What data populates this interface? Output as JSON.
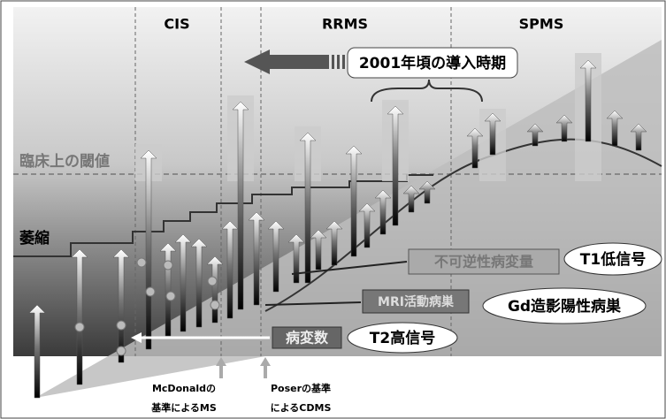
{
  "phases": [
    "CIS",
    "RRMS",
    "SPMS"
  ],
  "introduction": "2001年頃の導入時期",
  "threshold": "臨床上の閾値",
  "atrophy": "萎縮",
  "irreversible": {
    "label": "不可逆性病変量",
    "marker": "T1低信号"
  },
  "active": {
    "label": "MRI活動病巣",
    "marker": "Gd造影陽性病巣"
  },
  "lesions": {
    "label": "病変数",
    "marker": "T2高信号"
  },
  "criteria": [
    [
      "McDonaldの",
      "基準によるMS"
    ],
    [
      "Poserの基準",
      "によるCDMS"
    ]
  ]
}
